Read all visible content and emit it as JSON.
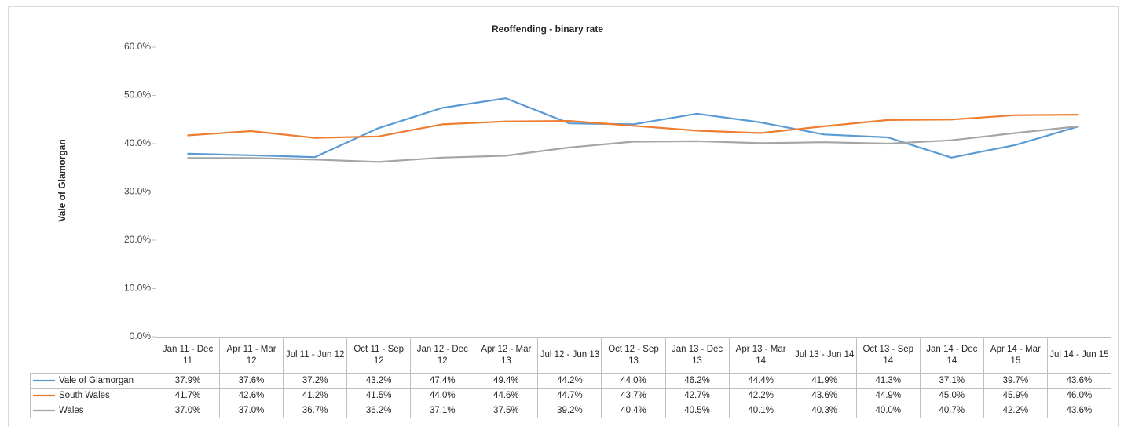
{
  "chart_data": {
    "type": "line",
    "title": "Reoffending - binary rate",
    "y_label": "Vale of Glamorgan",
    "categories": [
      "Jan 11 - Dec 11",
      "Apr 11 - Mar 12",
      "Jul 11 - Jun 12",
      "Oct 11 - Sep 12",
      "Jan 12 - Dec 12",
      "Apr 12 - Mar 13",
      "Jul 12 - Jun 13",
      "Oct 12 - Sep 13",
      "Jan 13 - Dec 13",
      "Apr 13 - Mar 14",
      "Jul 13 - Jun 14",
      "Oct 13 - Sep 14",
      "Jan 14 - Dec 14",
      "Apr 14 - Mar 15",
      "Jul 14 - Jun 15"
    ],
    "series": [
      {
        "name": "Vale of Glamorgan",
        "color": "#5b9bd5",
        "values": [
          37.9,
          37.6,
          37.2,
          43.2,
          47.4,
          49.4,
          44.2,
          44.0,
          46.2,
          44.4,
          41.9,
          41.3,
          37.1,
          39.7,
          43.6
        ],
        "value_labels": [
          "37.9%",
          "37.6%",
          "37.2%",
          "43.2%",
          "47.4%",
          "49.4%",
          "44.2%",
          "44.0%",
          "46.2%",
          "44.4%",
          "41.9%",
          "41.3%",
          "37.1%",
          "39.7%",
          "43.6%"
        ]
      },
      {
        "name": "South Wales",
        "color": "#ed7d31",
        "values": [
          41.7,
          42.6,
          41.2,
          41.5,
          44.0,
          44.6,
          44.7,
          43.7,
          42.7,
          42.2,
          43.6,
          44.9,
          45.0,
          45.9,
          46.0
        ],
        "value_labels": [
          "41.7%",
          "42.6%",
          "41.2%",
          "41.5%",
          "44.0%",
          "44.6%",
          "44.7%",
          "43.7%",
          "42.7%",
          "42.2%",
          "43.6%",
          "44.9%",
          "45.0%",
          "45.9%",
          "46.0%"
        ]
      },
      {
        "name": "Wales",
        "color": "#a5a5a5",
        "values": [
          37.0,
          37.0,
          36.7,
          36.2,
          37.1,
          37.5,
          39.2,
          40.4,
          40.5,
          40.1,
          40.3,
          40.0,
          40.7,
          42.2,
          43.6
        ],
        "value_labels": [
          "37.0%",
          "37.0%",
          "36.7%",
          "36.2%",
          "37.1%",
          "37.5%",
          "39.2%",
          "40.4%",
          "40.5%",
          "40.1%",
          "40.3%",
          "40.0%",
          "40.7%",
          "42.2%",
          "43.6%"
        ]
      }
    ],
    "ylim": [
      0,
      60
    ],
    "yticks": [
      {
        "value": 0,
        "label": "0.0%"
      },
      {
        "value": 10,
        "label": "10.0%"
      },
      {
        "value": 20,
        "label": "20.0%"
      },
      {
        "value": 30,
        "label": "30.0%"
      },
      {
        "value": 40,
        "label": "40.0%"
      },
      {
        "value": 50,
        "label": "50.0%"
      },
      {
        "value": 60,
        "label": "60.0%"
      }
    ],
    "grid": false
  }
}
